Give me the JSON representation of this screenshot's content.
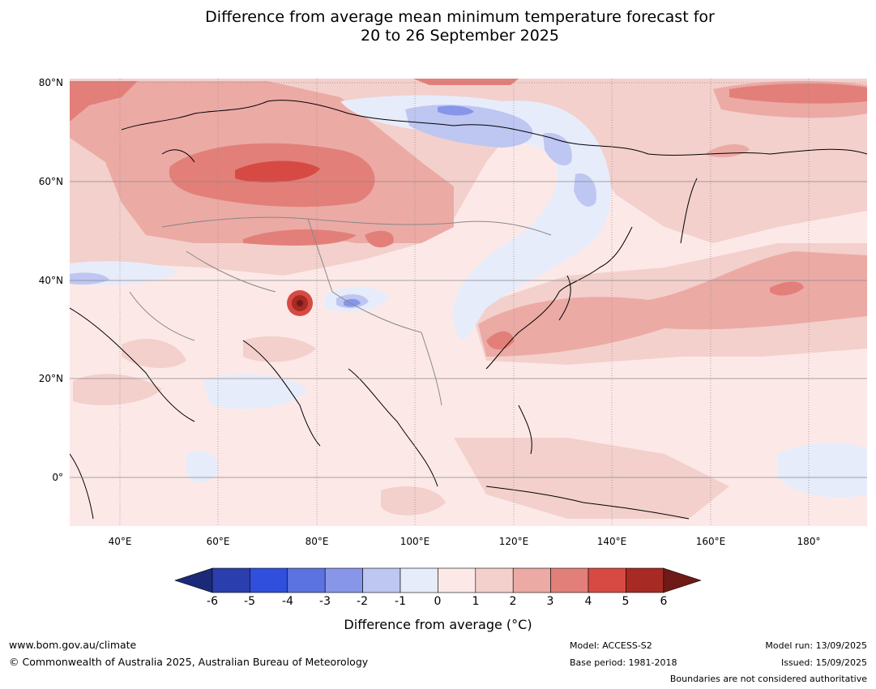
{
  "title": {
    "line1": "Difference from average mean minimum temperature forecast for",
    "line2": "20 to 26 September 2025"
  },
  "map": {
    "lat_labels": [
      "80°N",
      "60°N",
      "40°N",
      "20°N",
      "0°"
    ],
    "lon_labels": [
      "40°E",
      "60°E",
      "80°E",
      "100°E",
      "120°E",
      "140°E",
      "160°E",
      "180°"
    ],
    "extent": {
      "lon_min": 30,
      "lon_max": 192,
      "lat_min": -10,
      "lat_max": 81
    },
    "gridlines": true
  },
  "colorbar": {
    "ticks": [
      "-6",
      "-5",
      "-4",
      "-3",
      "-2",
      "-1",
      "0",
      "1",
      "2",
      "3",
      "4",
      "5",
      "6"
    ],
    "colors": [
      "#1b2a78",
      "#2b3ead",
      "#2f4fdc",
      "#5a73e0",
      "#8796e8",
      "#bec6f2",
      "#e7ecfb",
      "#fce9e7",
      "#f3d0cc",
      "#ecaaa5",
      "#e37f79",
      "#d74a44",
      "#a82a24",
      "#6e1a16"
    ],
    "label": "Difference from average (°C)"
  },
  "footer": {
    "website": "www.bom.gov.au/climate",
    "copyright": "© Commonwealth of Australia 2025, Australian Bureau of Meteorology",
    "model": "Model: ACCESS-S2",
    "base_period": "Base period: 1981-2018",
    "model_run": "Model run: 13/09/2025",
    "issued": "Issued: 15/09/2025",
    "disclaimer": "Boundaries are not considered authoritative"
  }
}
